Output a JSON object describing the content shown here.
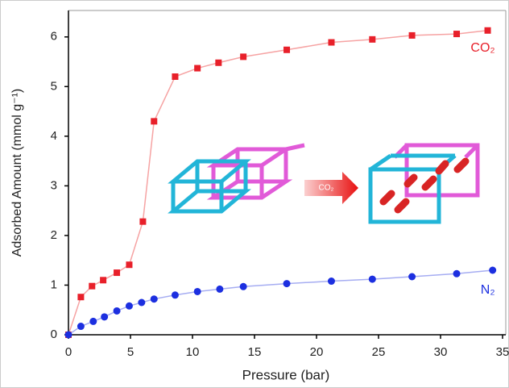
{
  "chart_data": {
    "type": "line",
    "xlabel": "Pressure (bar)",
    "ylabel": "Adsorbed Amount (mmol g⁻¹)",
    "xlim": [
      0,
      35
    ],
    "xticks": [
      0,
      5,
      10,
      15,
      20,
      25,
      30,
      35
    ],
    "ylim": [
      0,
      6.5
    ],
    "yticks": [
      0,
      1,
      2,
      3,
      4,
      5,
      6
    ],
    "annotation": "CO₂",
    "series": [
      {
        "name": "CO₂",
        "color": "#e8202a",
        "line_color": "#f6a3a3",
        "marker": "square",
        "x": [
          0,
          1,
          1.9,
          2.8,
          3.9,
          4.9,
          6,
          6.9,
          8.6,
          10.4,
          12.1,
          14.1,
          17.6,
          21.2,
          24.5,
          27.7,
          31.3,
          33.8
        ],
        "values": [
          0,
          0.76,
          0.98,
          1.1,
          1.25,
          1.41,
          2.28,
          4.3,
          5.2,
          5.37,
          5.48,
          5.6,
          5.74,
          5.89,
          5.95,
          6.03,
          6.06,
          6.13
        ]
      },
      {
        "name": "N₂",
        "color": "#1c2fe0",
        "line_color": "#a6adf2",
        "marker": "circle",
        "x": [
          0,
          1,
          2,
          2.9,
          3.9,
          4.9,
          5.9,
          6.9,
          8.6,
          10.4,
          12.2,
          14.1,
          17.6,
          21.2,
          24.5,
          27.7,
          31.3,
          34.2
        ],
        "values": [
          0,
          0.17,
          0.27,
          0.36,
          0.48,
          0.58,
          0.65,
          0.72,
          0.8,
          0.87,
          0.92,
          0.97,
          1.03,
          1.08,
          1.12,
          1.17,
          1.23,
          1.3
        ]
      }
    ]
  }
}
